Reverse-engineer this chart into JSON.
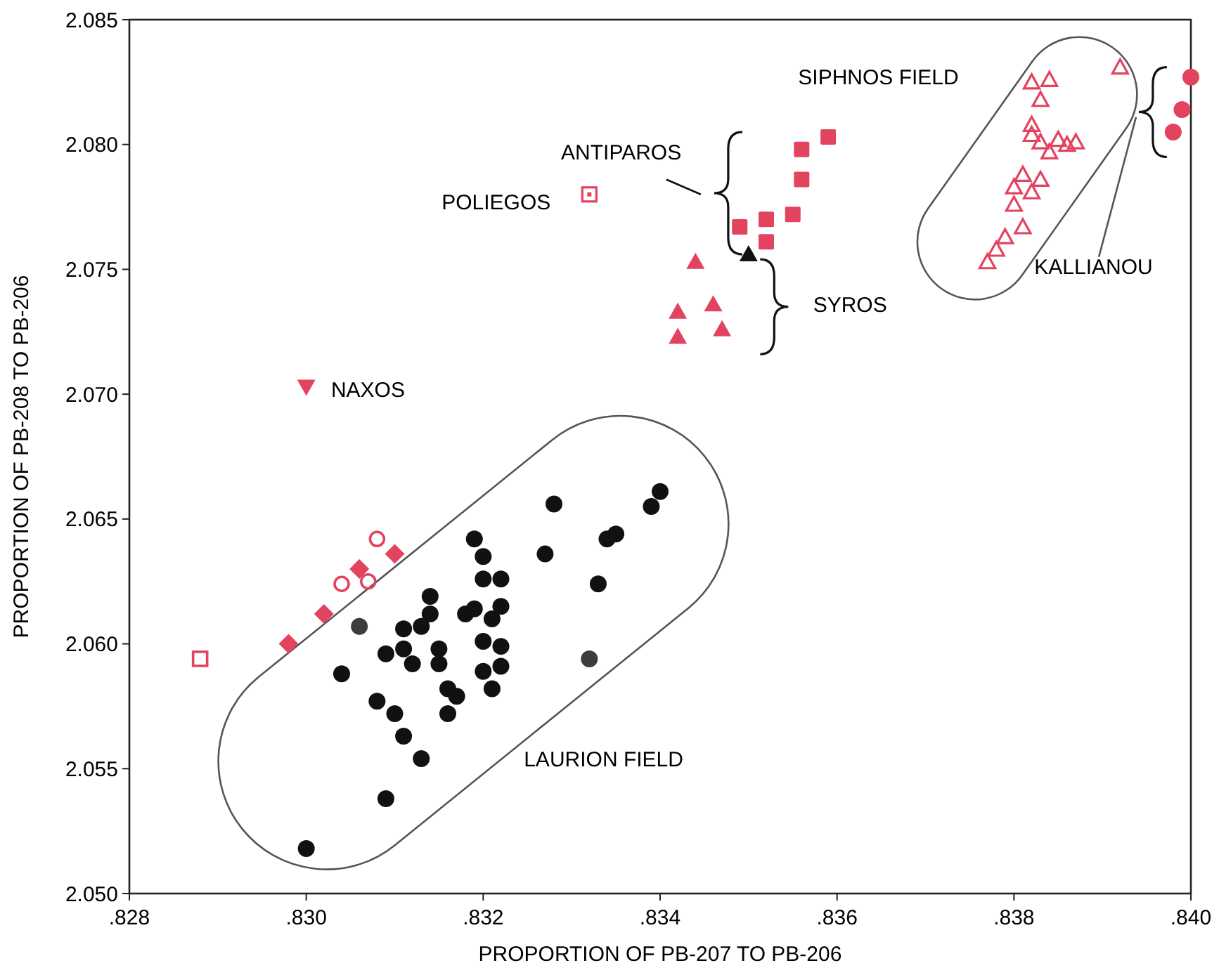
{
  "chart_data": {
    "type": "scatter",
    "xlabel": "PROPORTION OF PB-207 TO PB-206",
    "ylabel": "PROPORTION OF PB-208 TO PB-206",
    "xlim": [
      0.828,
      0.84
    ],
    "ylim": [
      2.05,
      2.085
    ],
    "xticks": [
      {
        "value": 0.828,
        "label": ".828"
      },
      {
        "value": 0.83,
        "label": ".830"
      },
      {
        "value": 0.832,
        "label": ".832"
      },
      {
        "value": 0.834,
        "label": ".834"
      },
      {
        "value": 0.836,
        "label": ".836"
      },
      {
        "value": 0.838,
        "label": ".838"
      },
      {
        "value": 0.84,
        "label": ".840"
      }
    ],
    "yticks": [
      {
        "value": 2.05,
        "label": "2.050"
      },
      {
        "value": 2.055,
        "label": "2.055"
      },
      {
        "value": 2.06,
        "label": "2.060"
      },
      {
        "value": 2.065,
        "label": "2.065"
      },
      {
        "value": 2.07,
        "label": "2.070"
      },
      {
        "value": 2.075,
        "label": "2.075"
      },
      {
        "value": 2.08,
        "label": "2.080"
      },
      {
        "value": 2.085,
        "label": "2.085"
      }
    ],
    "grid": false,
    "series": [
      {
        "color": "#111111",
        "marker": "circle",
        "x": [
          0.83,
          0.8309,
          0.8313,
          0.8311,
          0.831,
          0.8308,
          0.8304,
          0.8309,
          0.8311,
          0.8312,
          0.8311,
          0.8313,
          0.8314,
          0.8314,
          0.8315,
          0.8315,
          0.8316,
          0.8316,
          0.8317,
          0.8318,
          0.8319,
          0.832,
          0.832,
          0.8322,
          0.8319,
          0.8321,
          0.832,
          0.8322,
          0.832,
          0.8322,
          0.8321,
          0.8322,
          0.8327,
          0.8328,
          0.8333,
          0.8334,
          0.8335,
          0.8339,
          0.834
        ],
        "values": [
          2.0518,
          2.0538,
          2.0554,
          2.0563,
          2.0572,
          2.0577,
          2.0588,
          2.0596,
          2.0598,
          2.0592,
          2.0606,
          2.0607,
          2.0612,
          2.0619,
          2.0598,
          2.0592,
          2.0572,
          2.0582,
          2.0579,
          2.0612,
          2.0642,
          2.0635,
          2.0626,
          2.0626,
          2.0614,
          2.061,
          2.0601,
          2.0599,
          2.0589,
          2.0591,
          2.0582,
          2.0615,
          2.0636,
          2.0656,
          2.0624,
          2.0642,
          2.0644,
          2.0655,
          2.0661
        ]
      },
      {
        "color": "#3c3c3c",
        "marker": "circle",
        "x": [
          0.8306,
          0.8332
        ],
        "values": [
          2.0607,
          2.0594
        ]
      },
      {
        "color": "#e2445f",
        "marker": "diamond",
        "x": [
          0.8298,
          0.8302,
          0.8306,
          0.831
        ],
        "values": [
          2.06,
          2.0612,
          2.063,
          2.0636
        ]
      },
      {
        "color": "#e2445f",
        "marker": "circle-open",
        "x": [
          0.8304,
          0.8307,
          0.8308
        ],
        "values": [
          2.0624,
          2.0625,
          2.0642
        ]
      },
      {
        "color": "#e2445f",
        "marker": "square-open",
        "x": [
          0.8288
        ],
        "values": [
          2.0594
        ]
      },
      {
        "color": "#e2445f",
        "marker": "triangle-down",
        "x": [
          0.83
        ],
        "values": [
          2.0703
        ]
      },
      {
        "color": "#e2445f",
        "marker": "square-dot",
        "x": [
          0.8332
        ],
        "values": [
          2.078
        ]
      },
      {
        "color": "#e2445f",
        "marker": "square",
        "x": [
          0.8349,
          0.8352,
          0.8352,
          0.8355,
          0.8356,
          0.8356,
          0.8359
        ],
        "values": [
          2.0767,
          2.077,
          2.0761,
          2.0772,
          2.0786,
          2.0798,
          2.0803
        ]
      },
      {
        "color": "#111111",
        "marker": "triangle",
        "x": [
          0.835
        ],
        "values": [
          2.0756
        ]
      },
      {
        "color": "#e2445f",
        "marker": "triangle",
        "x": [
          0.8344,
          0.8342,
          0.8342,
          0.8346,
          0.8347
        ],
        "values": [
          2.0753,
          2.0733,
          2.0723,
          2.0736,
          2.0726
        ]
      },
      {
        "color": "#e2445f",
        "marker": "triangle-open",
        "x": [
          0.8382,
          0.8384,
          0.8383,
          0.8392,
          0.8382,
          0.8382,
          0.8383,
          0.8384,
          0.8385,
          0.8386,
          0.8387,
          0.8381,
          0.8383,
          0.838,
          0.8382,
          0.838,
          0.8381,
          0.8379,
          0.8378,
          0.8377
        ],
        "values": [
          2.0825,
          2.0826,
          2.0818,
          2.0831,
          2.0808,
          2.0804,
          2.0801,
          2.0797,
          2.0802,
          2.08,
          2.0801,
          2.0788,
          2.0786,
          2.0783,
          2.0781,
          2.0776,
          2.0767,
          2.0763,
          2.0758,
          2.0753
        ]
      },
      {
        "color": "#e2445f",
        "marker": "circle",
        "x": [
          0.84,
          0.8399,
          0.8398
        ],
        "values": [
          2.0827,
          2.0814,
          2.0805
        ]
      }
    ],
    "annotations": [
      "SIPHNOS FIELD",
      "ANTIPAROS",
      "POLIEGOS",
      "SYROS",
      "NAXOS",
      "KALLIANOU",
      "LAURION FIELD"
    ]
  }
}
